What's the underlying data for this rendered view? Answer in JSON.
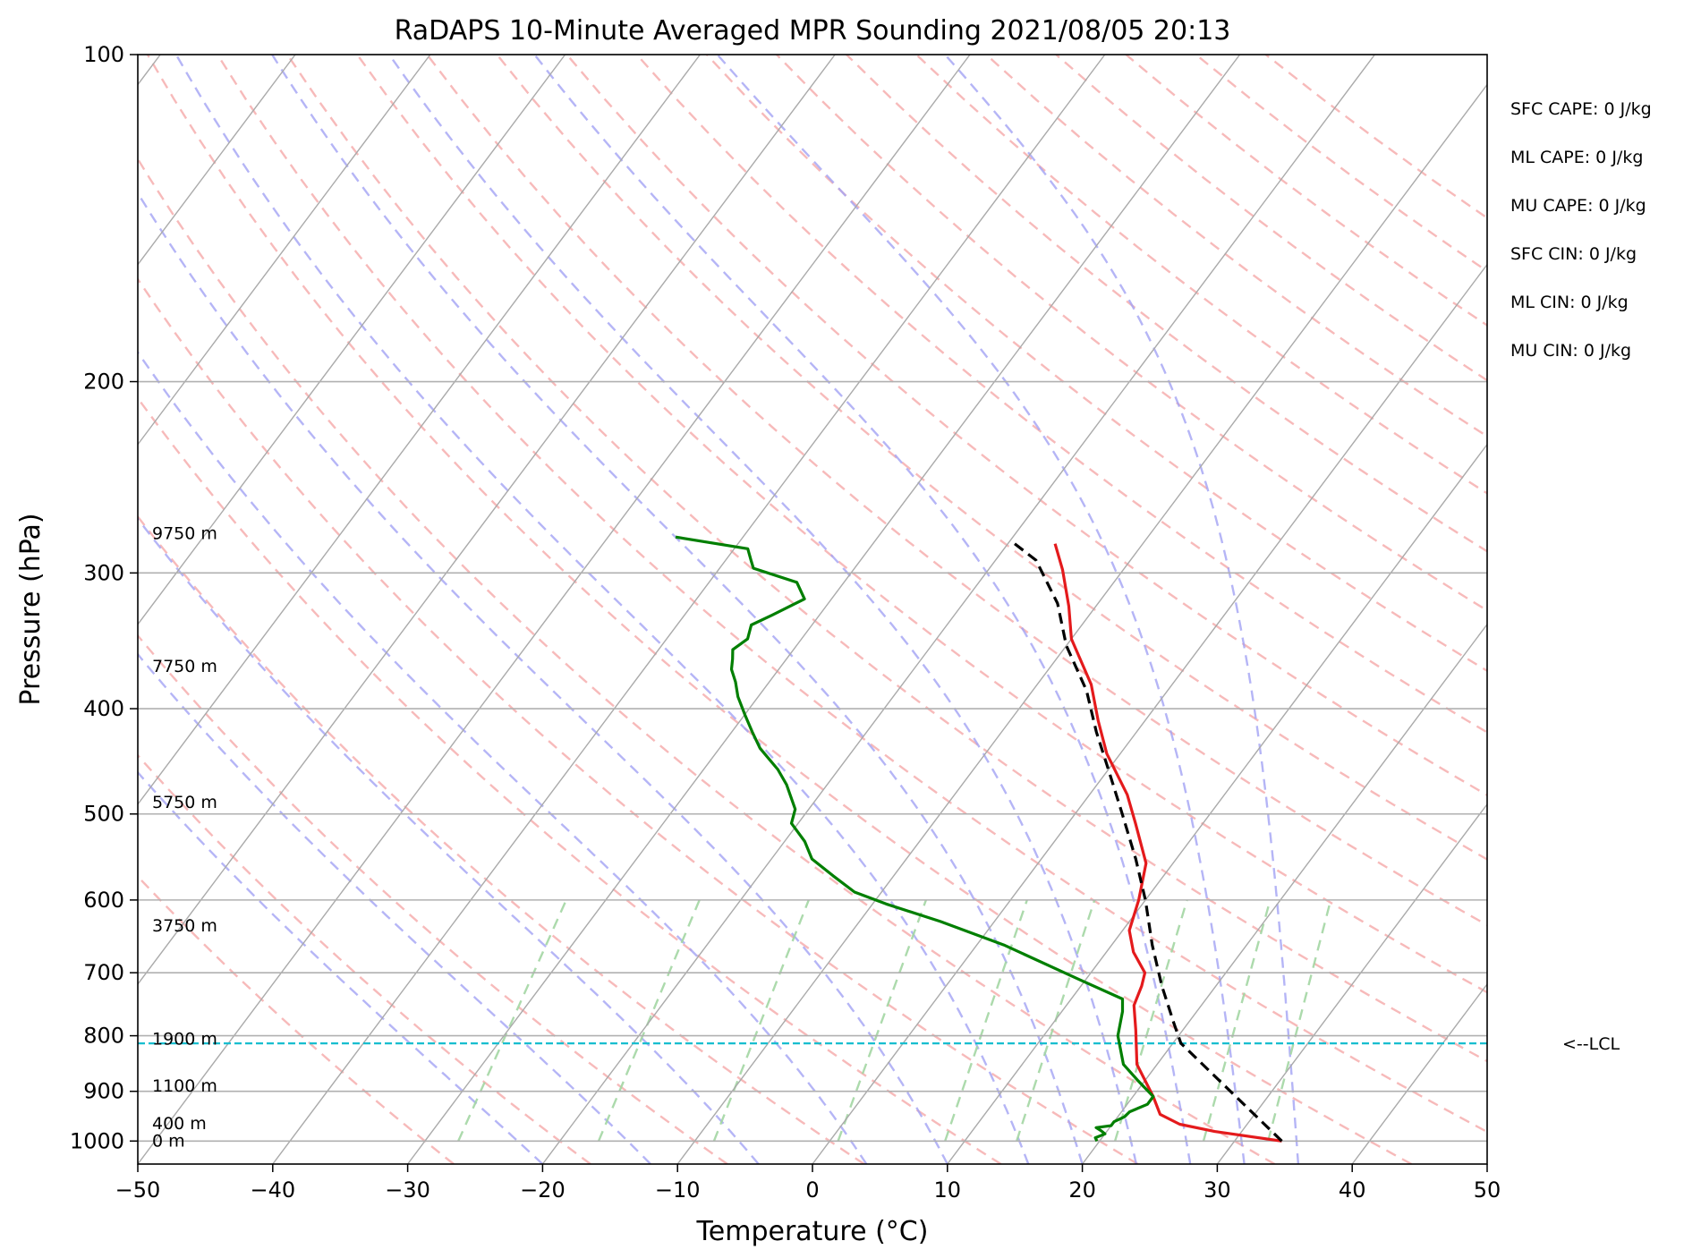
{
  "chart_data": {
    "type": "line",
    "subtype": "skew-t log-p",
    "title": "RaDAPS 10-Minute Averaged MPR Sounding 2021/08/05 20:13",
    "xlabel": "Temperature (°C)",
    "ylabel": "Pressure (hPa)",
    "xlim": [
      -50,
      50
    ],
    "ylim": [
      1050,
      100
    ],
    "y_scale": "log",
    "grid": true,
    "x_ticks": [
      "−50",
      "−40",
      "−30",
      "−20",
      "−10",
      "0",
      "10",
      "20",
      "30",
      "40",
      "50"
    ],
    "x_tick_values": [
      -50,
      -40,
      -30,
      -20,
      -10,
      0,
      10,
      20,
      30,
      40,
      50
    ],
    "y_ticks": [
      "100",
      "200",
      "300",
      "400",
      "500",
      "600",
      "700",
      "800",
      "900",
      "1000"
    ],
    "y_tick_values": [
      100,
      200,
      300,
      400,
      500,
      600,
      700,
      800,
      900,
      1000
    ],
    "height_labels": [
      {
        "text": "9750 m",
        "p": 276
      },
      {
        "text": "7750 m",
        "p": 366
      },
      {
        "text": "5750 m",
        "p": 488
      },
      {
        "text": "3750 m",
        "p": 634
      },
      {
        "text": "1900 m",
        "p": 806
      },
      {
        "text": "1100 m",
        "p": 890
      },
      {
        "text": "400 m",
        "p": 964
      },
      {
        "text": "0 m",
        "p": 1000
      }
    ],
    "series": [
      {
        "role": "temperature",
        "color": "#e41a1c",
        "points": [
          [
            33.5,
            1000
          ],
          [
            28,
            980
          ],
          [
            25,
            965
          ],
          [
            23,
            945
          ],
          [
            21.5,
            910
          ],
          [
            18.5,
            850
          ],
          [
            16.5,
            790
          ],
          [
            15,
            750
          ],
          [
            14.5,
            720
          ],
          [
            14,
            700
          ],
          [
            12,
            670
          ],
          [
            10.5,
            640
          ],
          [
            9.5,
            600
          ],
          [
            8,
            555
          ],
          [
            5,
            510
          ],
          [
            2.8,
            480
          ],
          [
            -1,
            440
          ],
          [
            -3.5,
            410
          ],
          [
            -6,
            380
          ],
          [
            -10,
            345
          ],
          [
            -12,
            322
          ],
          [
            -14.5,
            298
          ],
          [
            -16.5,
            282
          ]
        ]
      },
      {
        "role": "dewpoint",
        "color": "#007f00",
        "points": [
          [
            19.8,
            1000
          ],
          [
            19.5,
            993
          ],
          [
            20,
            985
          ],
          [
            19.5,
            978
          ],
          [
            19,
            972
          ],
          [
            20,
            968
          ],
          [
            20,
            960
          ],
          [
            20.5,
            950
          ],
          [
            20.6,
            940
          ],
          [
            21.5,
            925
          ],
          [
            21.5,
            910
          ],
          [
            19.5,
            880
          ],
          [
            17.5,
            850
          ],
          [
            15.5,
            800
          ],
          [
            14.5,
            760
          ],
          [
            13.8,
            740
          ],
          [
            9.5,
            710
          ],
          [
            2,
            660
          ],
          [
            -4,
            628
          ],
          [
            -9,
            605
          ],
          [
            -12,
            590
          ],
          [
            -14.5,
            570
          ],
          [
            -17,
            550
          ],
          [
            -18.5,
            530
          ],
          [
            -20.5,
            510
          ],
          [
            -21,
            495
          ],
          [
            -23,
            470
          ],
          [
            -24.5,
            455
          ],
          [
            -27,
            435
          ],
          [
            -28.5,
            420
          ],
          [
            -30,
            405
          ],
          [
            -31.5,
            390
          ],
          [
            -32.5,
            378
          ],
          [
            -33.5,
            368
          ],
          [
            -34,
            360
          ],
          [
            -34.5,
            353
          ],
          [
            -34,
            345
          ],
          [
            -34.5,
            335
          ],
          [
            -33.5,
            328
          ],
          [
            -32,
            317
          ],
          [
            -33.5,
            306
          ],
          [
            -37.5,
            297
          ],
          [
            -38,
            293
          ],
          [
            -39,
            285
          ],
          [
            -45,
            278
          ]
        ]
      },
      {
        "role": "parcel",
        "color": "#000000",
        "dash": "dashed",
        "points": [
          [
            33.5,
            1000
          ],
          [
            20.6,
            813
          ],
          [
            19,
            780
          ],
          [
            16,
            720
          ],
          [
            13,
            660
          ],
          [
            10,
            600
          ],
          [
            7,
            550
          ],
          [
            3.5,
            500
          ],
          [
            0,
            455
          ],
          [
            -3,
            420
          ],
          [
            -6,
            385
          ],
          [
            -10,
            350
          ],
          [
            -13,
            320
          ],
          [
            -17,
            292
          ],
          [
            -20,
            280
          ]
        ]
      }
    ],
    "lcl": {
      "p": 813,
      "label": "<--LCL",
      "color": "#17becf"
    },
    "indices": [
      "SFC CAPE: 0 J/kg",
      "ML CAPE: 0 J/kg",
      "MU CAPE: 0 J/kg",
      "SFC CIN: 0 J/kg",
      "ML CIN: 0 J/kg",
      "MU CIN: 0 J/kg"
    ],
    "background_lines": {
      "isotherms_color": "#aaaaaa",
      "dry_adiabats_color": "#f4a3a3",
      "moist_adiabats_color": "#a3a3f4",
      "mixing_ratio_color": "#a3d6a3"
    }
  }
}
